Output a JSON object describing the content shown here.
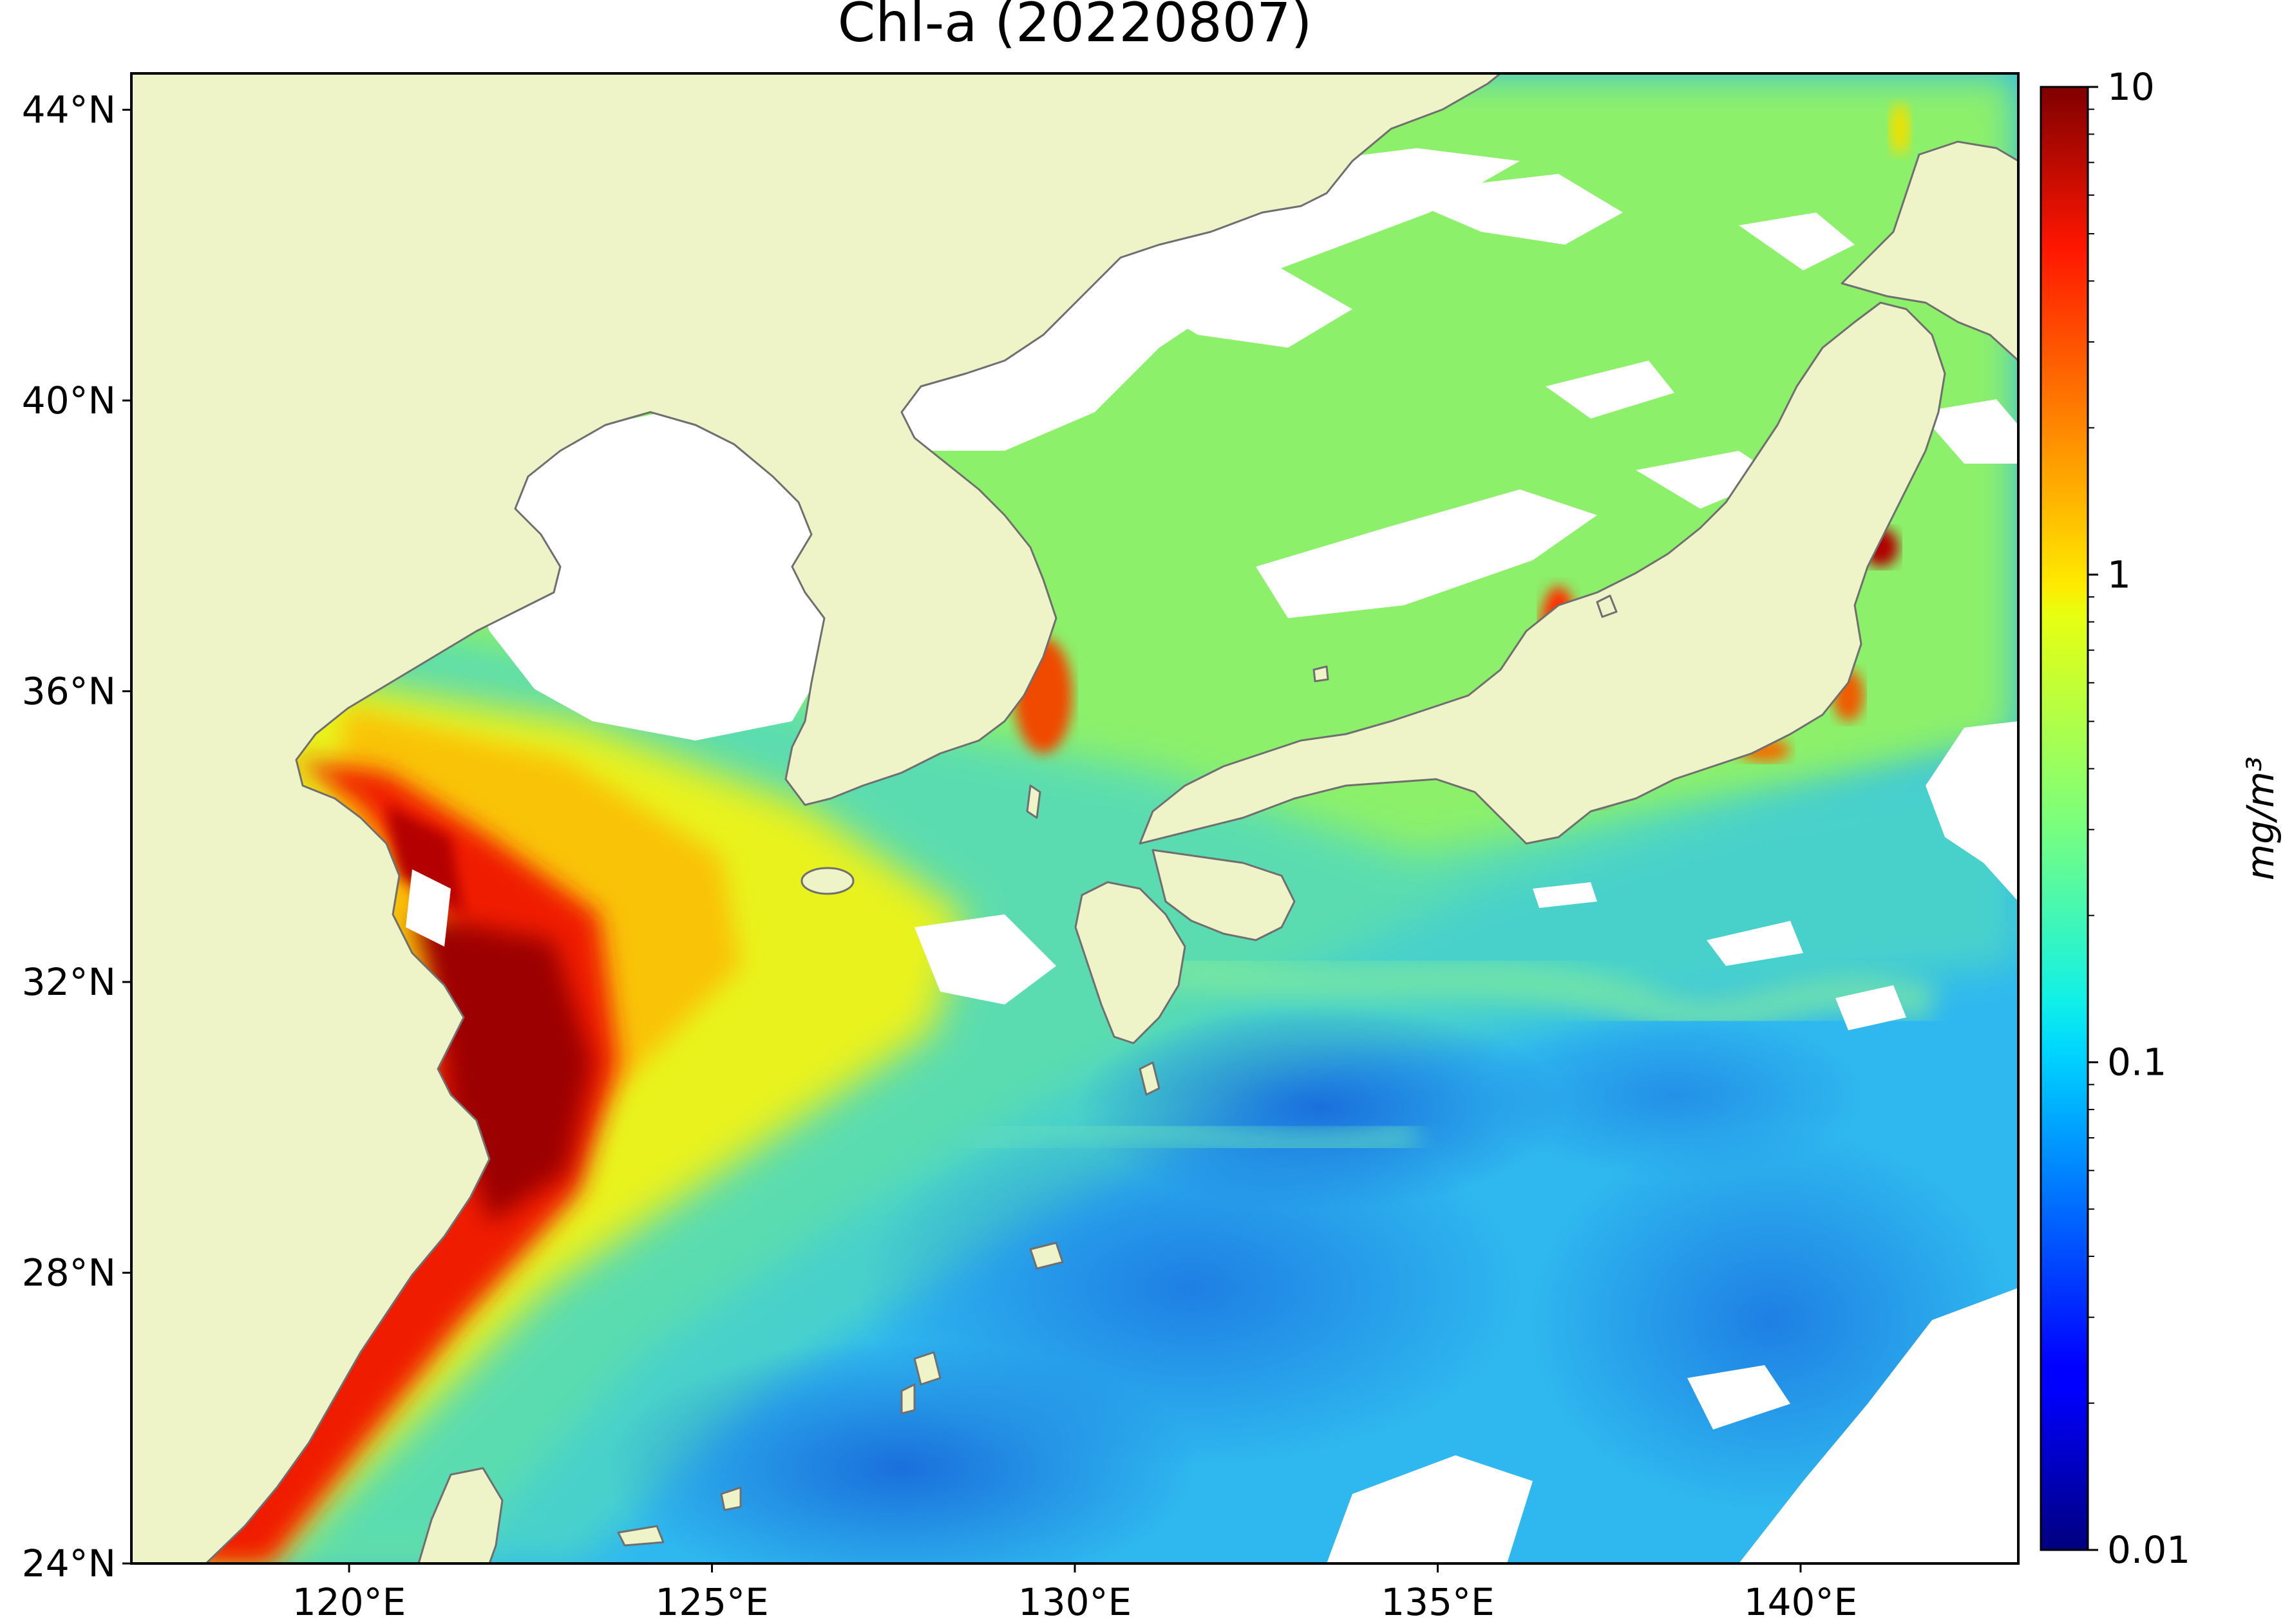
{
  "map": {
    "title": "Chl-a (20220807)",
    "projection": "plate-carree",
    "extent": {
      "lon": [
        117,
        143
      ],
      "lat": [
        24,
        44.5
      ]
    },
    "lat_ticks": [
      {
        "value": 44,
        "label": "44°N"
      },
      {
        "value": 40,
        "label": "40°N"
      },
      {
        "value": 36,
        "label": "36°N"
      },
      {
        "value": 32,
        "label": "32°N"
      },
      {
        "value": 28,
        "label": "28°N"
      },
      {
        "value": 24,
        "label": "24°N"
      }
    ],
    "lon_ticks": [
      {
        "value": 120,
        "label": "120°E"
      },
      {
        "value": 125,
        "label": "125°E"
      },
      {
        "value": 130,
        "label": "130°E"
      },
      {
        "value": 135,
        "label": "135°E"
      },
      {
        "value": 140,
        "label": "140°E"
      }
    ],
    "colors": {
      "land": "#eff3c8",
      "coastline": "#6f6f6f",
      "no_data": "#ffffff",
      "frame": "#000000"
    }
  },
  "colorbar": {
    "label": "mg/m³",
    "scale": "log",
    "range": [
      0.01,
      10
    ],
    "colormap": "jet",
    "ticks": [
      {
        "value": 10,
        "label": "10"
      },
      {
        "value": 1,
        "label": "1"
      },
      {
        "value": 0.1,
        "label": "0.1"
      },
      {
        "value": 0.01,
        "label": "0.01"
      }
    ]
  }
}
